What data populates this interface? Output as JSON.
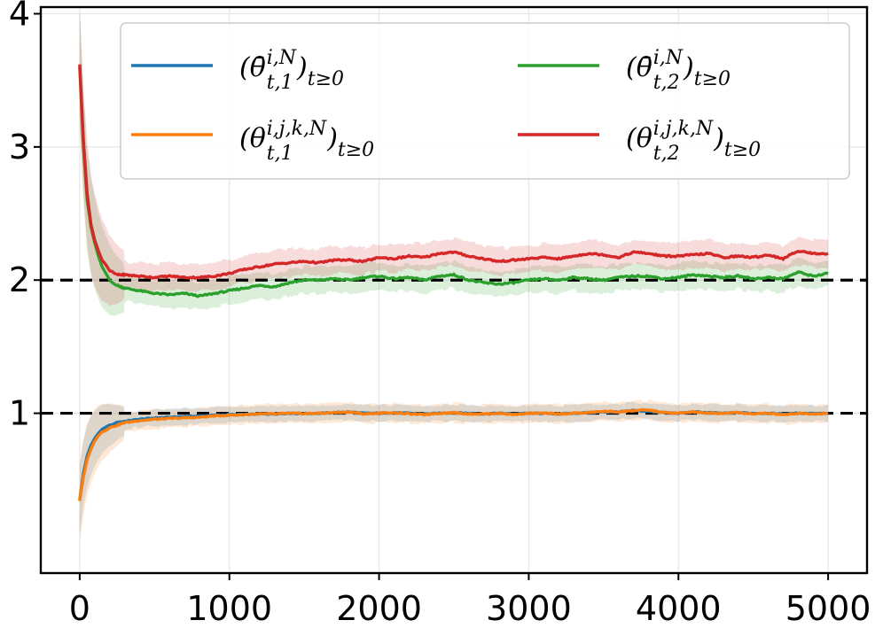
{
  "chart_data": {
    "type": "line",
    "title": "",
    "xlabel": "",
    "ylabel": "",
    "xlim": [
      -260,
      5260
    ],
    "ylim": [
      -0.2,
      4.05
    ],
    "xticks": [
      "0",
      "1000",
      "2000",
      "3000",
      "4000",
      "5000"
    ],
    "yticks": [
      "1",
      "2",
      "3",
      "4"
    ],
    "grid": true,
    "legend_position": "top",
    "reference_lines": [
      1,
      2
    ],
    "x": [
      0,
      25,
      50,
      75,
      100,
      125,
      150,
      200,
      250,
      300,
      400,
      500,
      600,
      700,
      800,
      900,
      1000,
      1100,
      1200,
      1300,
      1400,
      1500,
      1600,
      1700,
      1800,
      1900,
      2000,
      2100,
      2200,
      2300,
      2400,
      2500,
      2600,
      2700,
      2800,
      2900,
      3000,
      3100,
      3200,
      3300,
      3400,
      3500,
      3600,
      3700,
      3800,
      3900,
      4000,
      4100,
      4200,
      4300,
      4400,
      4500,
      4600,
      4700,
      4800,
      4900,
      5000
    ],
    "series": [
      {
        "name": "θ̄ t,1",
        "color": "#1f77b4",
        "values": [
          0.35,
          0.55,
          0.68,
          0.76,
          0.81,
          0.85,
          0.88,
          0.91,
          0.93,
          0.94,
          0.955,
          0.965,
          0.97,
          0.975,
          0.98,
          0.985,
          0.99,
          0.99,
          0.995,
          0.995,
          1.0,
          0.998,
          1.0,
          1.005,
          1.01,
          1.0,
          1.0,
          1.005,
          1.0,
          0.995,
          1.0,
          1.005,
          1.0,
          0.995,
          1.0,
          0.995,
          1.0,
          1.0,
          0.995,
          1.0,
          1.005,
          1.01,
          1.01,
          1.02,
          1.015,
          1.005,
          1.0,
          1.01,
          1.005,
          1.0,
          1.005,
          1.0,
          1.0,
          0.995,
          1.0,
          1.0,
          1.0
        ],
        "band": 0.06
      },
      {
        "name": "θ̄ t,2",
        "color": "#2ca02c",
        "values": [
          3.6,
          3.0,
          2.6,
          2.4,
          2.28,
          2.18,
          2.1,
          2.0,
          1.96,
          1.94,
          1.92,
          1.9,
          1.89,
          1.9,
          1.88,
          1.9,
          1.92,
          1.94,
          1.96,
          1.95,
          1.98,
          2.0,
          2.0,
          2.01,
          2.0,
          2.02,
          2.03,
          2.01,
          2.02,
          2.0,
          2.03,
          2.04,
          2.0,
          1.98,
          1.97,
          1.98,
          2.0,
          2.01,
          2.0,
          2.02,
          2.01,
          2.0,
          2.02,
          2.03,
          2.03,
          2.01,
          2.02,
          2.04,
          2.03,
          2.02,
          2.03,
          2.01,
          2.02,
          2.01,
          2.06,
          2.03,
          2.05
        ],
        "band": 0.1
      },
      {
        "name": "θ t,1 (i,j,k)",
        "color": "#ff7f0e",
        "values": [
          0.34,
          0.52,
          0.65,
          0.73,
          0.79,
          0.83,
          0.86,
          0.89,
          0.91,
          0.93,
          0.945,
          0.955,
          0.96,
          0.965,
          0.97,
          0.98,
          0.985,
          0.99,
          0.995,
          0.995,
          1.0,
          0.998,
          1.0,
          1.005,
          1.01,
          0.995,
          1.0,
          1.005,
          0.995,
          0.99,
          1.0,
          1.005,
          0.995,
          0.995,
          1.0,
          0.99,
          1.0,
          1.0,
          0.995,
          1.0,
          1.005,
          1.015,
          1.01,
          1.02,
          1.025,
          1.005,
          1.0,
          1.01,
          1.0,
          1.0,
          1.005,
          0.995,
          1.0,
          0.99,
          1.0,
          0.995,
          1.0
        ],
        "band": 0.07
      },
      {
        "name": "θ t,2 (i,j,k)",
        "color": "#d62728",
        "values": [
          3.62,
          3.05,
          2.65,
          2.42,
          2.3,
          2.22,
          2.15,
          2.07,
          2.04,
          2.04,
          2.03,
          2.02,
          2.03,
          2.02,
          2.02,
          2.03,
          2.05,
          2.08,
          2.1,
          2.12,
          2.13,
          2.14,
          2.13,
          2.15,
          2.15,
          2.14,
          2.17,
          2.16,
          2.18,
          2.17,
          2.2,
          2.21,
          2.18,
          2.16,
          2.14,
          2.15,
          2.16,
          2.17,
          2.16,
          2.18,
          2.2,
          2.19,
          2.17,
          2.21,
          2.2,
          2.18,
          2.18,
          2.19,
          2.2,
          2.17,
          2.18,
          2.17,
          2.19,
          2.16,
          2.22,
          2.2,
          2.2
        ],
        "band": 0.1
      }
    ],
    "legend": [
      {
        "series": 0,
        "base": "(θ̄",
        "sup": "i,N",
        "sub": "t,1",
        "tail": ")",
        "tailsub": "t≥0"
      },
      {
        "series": 1,
        "base": "(θ̄",
        "sup": "i,N",
        "sub": "t,2",
        "tail": ")",
        "tailsub": "t≥0"
      },
      {
        "series": 2,
        "base": "(θ",
        "sup": "i,j,k,N",
        "sub": "t,1",
        "tail": ")",
        "tailsub": "t≥0"
      },
      {
        "series": 3,
        "base": "(θ",
        "sup": "i,j,k,N",
        "sub": "t,2",
        "tail": ")",
        "tailsub": "t≥0"
      }
    ]
  }
}
